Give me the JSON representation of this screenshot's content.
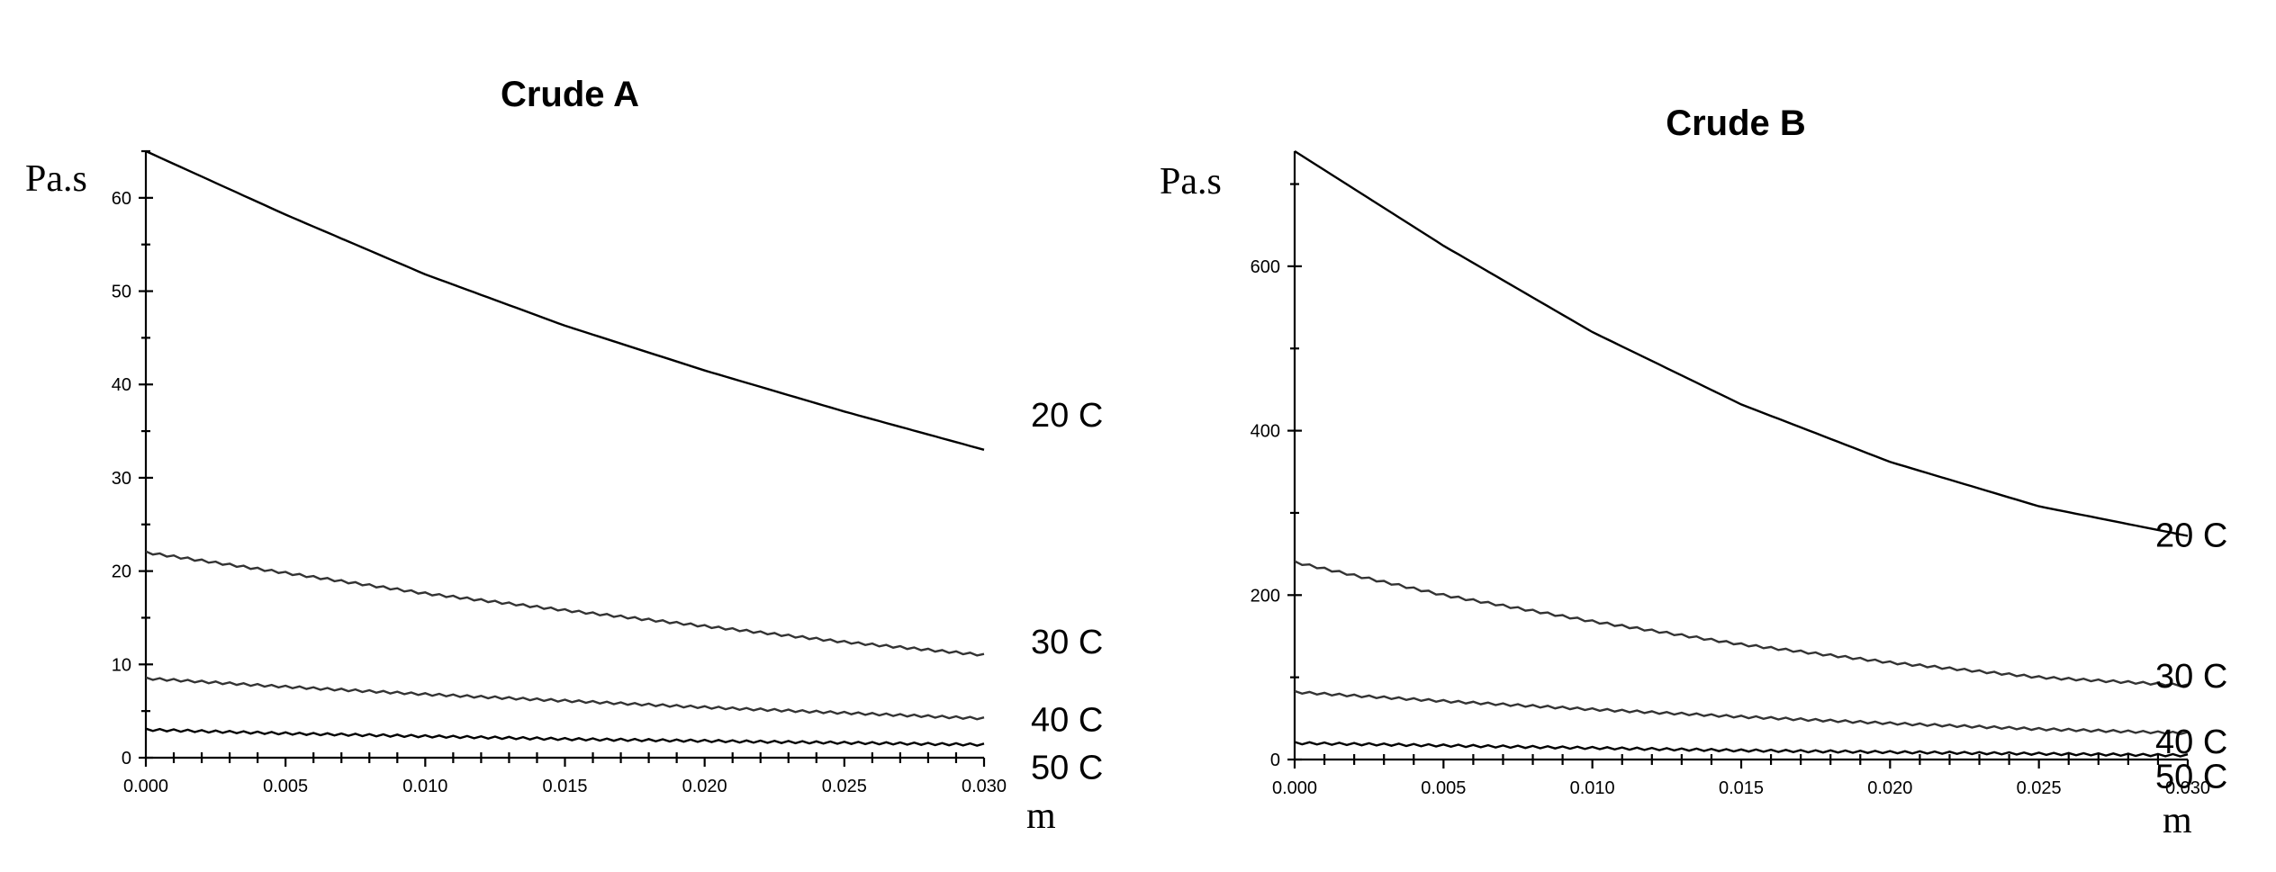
{
  "chart_data": [
    {
      "type": "line",
      "title": "Crude A",
      "ylabel": "Pa.s",
      "xlabel": "m",
      "xlim": [
        0,
        0.03
      ],
      "ylim": [
        0,
        65
      ],
      "x_ticks": [
        "0.000",
        "0.005",
        "0.010",
        "0.015",
        "0.020",
        "0.025",
        "0.030"
      ],
      "y_ticks": [
        "0",
        "10",
        "20",
        "30",
        "40",
        "50",
        "60"
      ],
      "y_tick_values": [
        0,
        10,
        20,
        30,
        40,
        50,
        60
      ],
      "grid": false,
      "series": [
        {
          "name": "20 C",
          "color": "#000000",
          "x": [
            0,
            0.005,
            0.01,
            0.015,
            0.02,
            0.025,
            0.03
          ],
          "values": [
            65,
            58.2,
            51.8,
            46.3,
            41.5,
            37.1,
            33
          ]
        },
        {
          "name": "30 C",
          "color": "#333333",
          "x": [
            0,
            0.005,
            0.01,
            0.015,
            0.02,
            0.025,
            0.03
          ],
          "values": [
            22,
            19.8,
            17.6,
            15.8,
            14.1,
            12.4,
            11
          ]
        },
        {
          "name": "40 C",
          "color": "#333333",
          "x": [
            0,
            0.005,
            0.01,
            0.015,
            0.02,
            0.025,
            0.03
          ],
          "values": [
            8.5,
            7.6,
            6.8,
            6.1,
            5.4,
            4.8,
            4.2
          ]
        },
        {
          "name": "50 C",
          "color": "#000000",
          "x": [
            0,
            0.005,
            0.01,
            0.015,
            0.02,
            0.025,
            0.03
          ],
          "values": [
            3,
            2.6,
            2.3,
            2.0,
            1.8,
            1.6,
            1.4
          ]
        }
      ]
    },
    {
      "type": "line",
      "title": "Crude B",
      "ylabel": "Pa.s",
      "xlabel": "m",
      "xlim": [
        0,
        0.03
      ],
      "ylim": [
        0,
        740
      ],
      "x_ticks": [
        "0.000",
        "0.005",
        "0.010",
        "0.015",
        "0.020",
        "0.025",
        "0.030"
      ],
      "y_ticks": [
        "0",
        "200",
        "400",
        "600"
      ],
      "y_tick_values": [
        0,
        200,
        400,
        600
      ],
      "grid": false,
      "series": [
        {
          "name": "20 C",
          "color": "#000000",
          "x": [
            0,
            0.005,
            0.01,
            0.015,
            0.02,
            0.025,
            0.03
          ],
          "values": [
            740,
            625,
            520,
            432,
            362,
            308,
            272
          ]
        },
        {
          "name": "30 C",
          "color": "#333333",
          "x": [
            0,
            0.005,
            0.01,
            0.015,
            0.02,
            0.025,
            0.03
          ],
          "values": [
            240,
            200,
            168,
            140,
            118,
            100,
            90
          ]
        },
        {
          "name": "40 C",
          "color": "#333333",
          "x": [
            0,
            0.005,
            0.01,
            0.015,
            0.02,
            0.025,
            0.03
          ],
          "values": [
            82,
            71,
            61,
            52,
            44,
            37,
            32
          ]
        },
        {
          "name": "50 C",
          "color": "#000000",
          "x": [
            0,
            0.005,
            0.01,
            0.015,
            0.02,
            0.025,
            0.03
          ],
          "values": [
            20,
            17,
            14,
            11,
            9,
            7,
            5
          ]
        }
      ]
    }
  ]
}
